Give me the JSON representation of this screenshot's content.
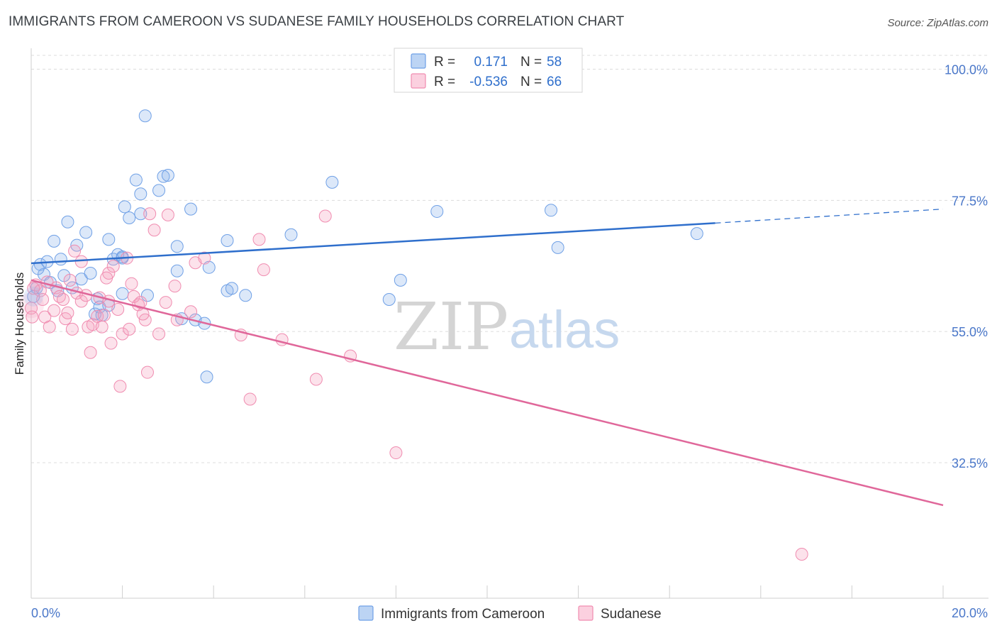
{
  "header": {
    "title": "IMMIGRANTS FROM CAMEROON VS SUDANESE FAMILY HOUSEHOLDS CORRELATION CHART",
    "source": "Source: ZipAtlas.com"
  },
  "watermark": {
    "zip": "ZIP",
    "atlas": "atlas"
  },
  "legend": {
    "rows": [
      {
        "r_label": "R =",
        "r_value": "0.171",
        "n_label": "N =",
        "n_value": "58",
        "color": "#6fa0e6"
      },
      {
        "r_label": "R =",
        "r_value": "-0.536",
        "n_label": "N =",
        "n_value": "66",
        "color": "#f08cb0"
      }
    ]
  },
  "bottom_legend": {
    "items": [
      {
        "label": "Immigrants from Cameroon",
        "color": "#6fa0e6"
      },
      {
        "label": "Sudanese",
        "color": "#f08cb0"
      }
    ]
  },
  "chart_data": {
    "type": "scatter",
    "title": "IMMIGRANTS FROM CAMEROON VS SUDANESE FAMILY HOUSEHOLDS CORRELATION CHART",
    "xlabel": "",
    "ylabel": "Family Households",
    "xlim": [
      0,
      20
    ],
    "ylim": [
      15,
      102
    ],
    "x_tick_labels": [
      "0.0%",
      "20.0%"
    ],
    "y_ticks": [
      32.5,
      55.0,
      77.5,
      100.0
    ],
    "y_tick_labels": [
      "32.5%",
      "55.0%",
      "77.5%",
      "100.0%"
    ],
    "grid": true,
    "legend_position": "top-center",
    "colors": {
      "cameroon": "#6fa0e6",
      "sudanese": "#f08cb0",
      "cameroon_line": "#2f6fcc",
      "sudanese_line": "#e0679a"
    },
    "series": [
      {
        "name": "Immigrants from Cameroon",
        "r": 0.171,
        "n": 58,
        "trend": {
          "x0": 0.0,
          "y0": 66.7,
          "x1": 15.0,
          "y1": 73.6,
          "x_dash_end": 20.0,
          "y_dash_end": 76.0
        },
        "points": [
          [
            0.05,
            61.0
          ],
          [
            0.12,
            62.5
          ],
          [
            0.2,
            66.5
          ],
          [
            0.28,
            64.8
          ],
          [
            0.35,
            67.0
          ],
          [
            0.42,
            63.4
          ],
          [
            0.5,
            70.5
          ],
          [
            0.58,
            62.0
          ],
          [
            0.65,
            67.4
          ],
          [
            0.72,
            64.6
          ],
          [
            0.8,
            73.8
          ],
          [
            0.9,
            62.5
          ],
          [
            1.0,
            69.8
          ],
          [
            1.1,
            64.0
          ],
          [
            1.2,
            72.0
          ],
          [
            1.3,
            65.0
          ],
          [
            1.4,
            58.0
          ],
          [
            1.45,
            60.6
          ],
          [
            1.5,
            59.2
          ],
          [
            1.55,
            57.8
          ],
          [
            1.7,
            59.5
          ],
          [
            1.7,
            70.8
          ],
          [
            1.8,
            67.4
          ],
          [
            1.9,
            68.2
          ],
          [
            2.0,
            67.6
          ],
          [
            2.0,
            61.5
          ],
          [
            2.05,
            76.4
          ],
          [
            2.15,
            74.5
          ],
          [
            2.3,
            81.0
          ],
          [
            2.4,
            78.6
          ],
          [
            2.4,
            75.2
          ],
          [
            2.5,
            92.0
          ],
          [
            2.55,
            61.2
          ],
          [
            2.8,
            79.2
          ],
          [
            2.9,
            81.6
          ],
          [
            3.0,
            81.8
          ],
          [
            3.2,
            69.6
          ],
          [
            3.2,
            65.4
          ],
          [
            3.3,
            57.2
          ],
          [
            3.5,
            76.0
          ],
          [
            3.6,
            57.0
          ],
          [
            3.8,
            56.4
          ],
          [
            3.85,
            47.2
          ],
          [
            3.9,
            66.0
          ],
          [
            4.3,
            70.6
          ],
          [
            4.3,
            62.0
          ],
          [
            4.4,
            62.4
          ],
          [
            4.7,
            61.2
          ],
          [
            5.7,
            71.6
          ],
          [
            6.6,
            80.6
          ],
          [
            7.85,
            60.5
          ],
          [
            8.1,
            63.8
          ],
          [
            8.9,
            75.6
          ],
          [
            11.4,
            75.8
          ],
          [
            11.55,
            69.4
          ],
          [
            14.6,
            71.8
          ],
          [
            0.15,
            65.8
          ],
          [
            2.0,
            67.8
          ]
        ]
      },
      {
        "name": "Sudanese",
        "r": -0.536,
        "n": 66,
        "trend": {
          "x0": 0.0,
          "y0": 63.8,
          "x1": 20.0,
          "y1": 25.2
        },
        "points": [
          [
            0.0,
            59.0
          ],
          [
            0.02,
            57.5
          ],
          [
            0.1,
            63.0
          ],
          [
            0.2,
            62.0
          ],
          [
            0.3,
            57.5
          ],
          [
            0.35,
            63.5
          ],
          [
            0.4,
            55.8
          ],
          [
            0.5,
            58.6
          ],
          [
            0.55,
            62.5
          ],
          [
            0.62,
            61.0
          ],
          [
            0.7,
            60.5
          ],
          [
            0.75,
            57.2
          ],
          [
            0.8,
            58.2
          ],
          [
            0.85,
            63.8
          ],
          [
            0.9,
            55.4
          ],
          [
            0.95,
            68.8
          ],
          [
            1.0,
            61.6
          ],
          [
            1.1,
            67.0
          ],
          [
            1.1,
            60.2
          ],
          [
            1.2,
            61.2
          ],
          [
            1.25,
            55.8
          ],
          [
            1.3,
            51.4
          ],
          [
            1.35,
            56.2
          ],
          [
            1.45,
            57.6
          ],
          [
            1.5,
            60.8
          ],
          [
            1.55,
            55.8
          ],
          [
            1.6,
            57.8
          ],
          [
            1.7,
            65.0
          ],
          [
            1.7,
            60.2
          ],
          [
            1.75,
            53.0
          ],
          [
            1.8,
            66.2
          ],
          [
            1.9,
            58.8
          ],
          [
            1.95,
            45.6
          ],
          [
            2.0,
            54.6
          ],
          [
            2.1,
            67.6
          ],
          [
            2.15,
            55.4
          ],
          [
            2.2,
            63.2
          ],
          [
            2.25,
            61.0
          ],
          [
            2.35,
            59.6
          ],
          [
            2.4,
            60.0
          ],
          [
            2.5,
            57.0
          ],
          [
            2.55,
            48.0
          ],
          [
            2.6,
            75.2
          ],
          [
            2.7,
            72.4
          ],
          [
            2.8,
            54.6
          ],
          [
            2.95,
            60.0
          ],
          [
            3.0,
            75.0
          ],
          [
            3.15,
            62.8
          ],
          [
            3.2,
            57.0
          ],
          [
            3.5,
            58.4
          ],
          [
            3.6,
            66.8
          ],
          [
            3.8,
            67.6
          ],
          [
            4.6,
            54.4
          ],
          [
            4.8,
            43.4
          ],
          [
            5.0,
            70.8
          ],
          [
            5.1,
            65.6
          ],
          [
            5.5,
            53.6
          ],
          [
            6.25,
            46.8
          ],
          [
            6.45,
            74.8
          ],
          [
            7.0,
            50.8
          ],
          [
            8.0,
            34.2
          ],
          [
            16.9,
            16.8
          ],
          [
            0.05,
            62.4
          ],
          [
            0.25,
            60.5
          ],
          [
            1.65,
            64.2
          ],
          [
            2.45,
            58.0
          ]
        ]
      }
    ]
  }
}
